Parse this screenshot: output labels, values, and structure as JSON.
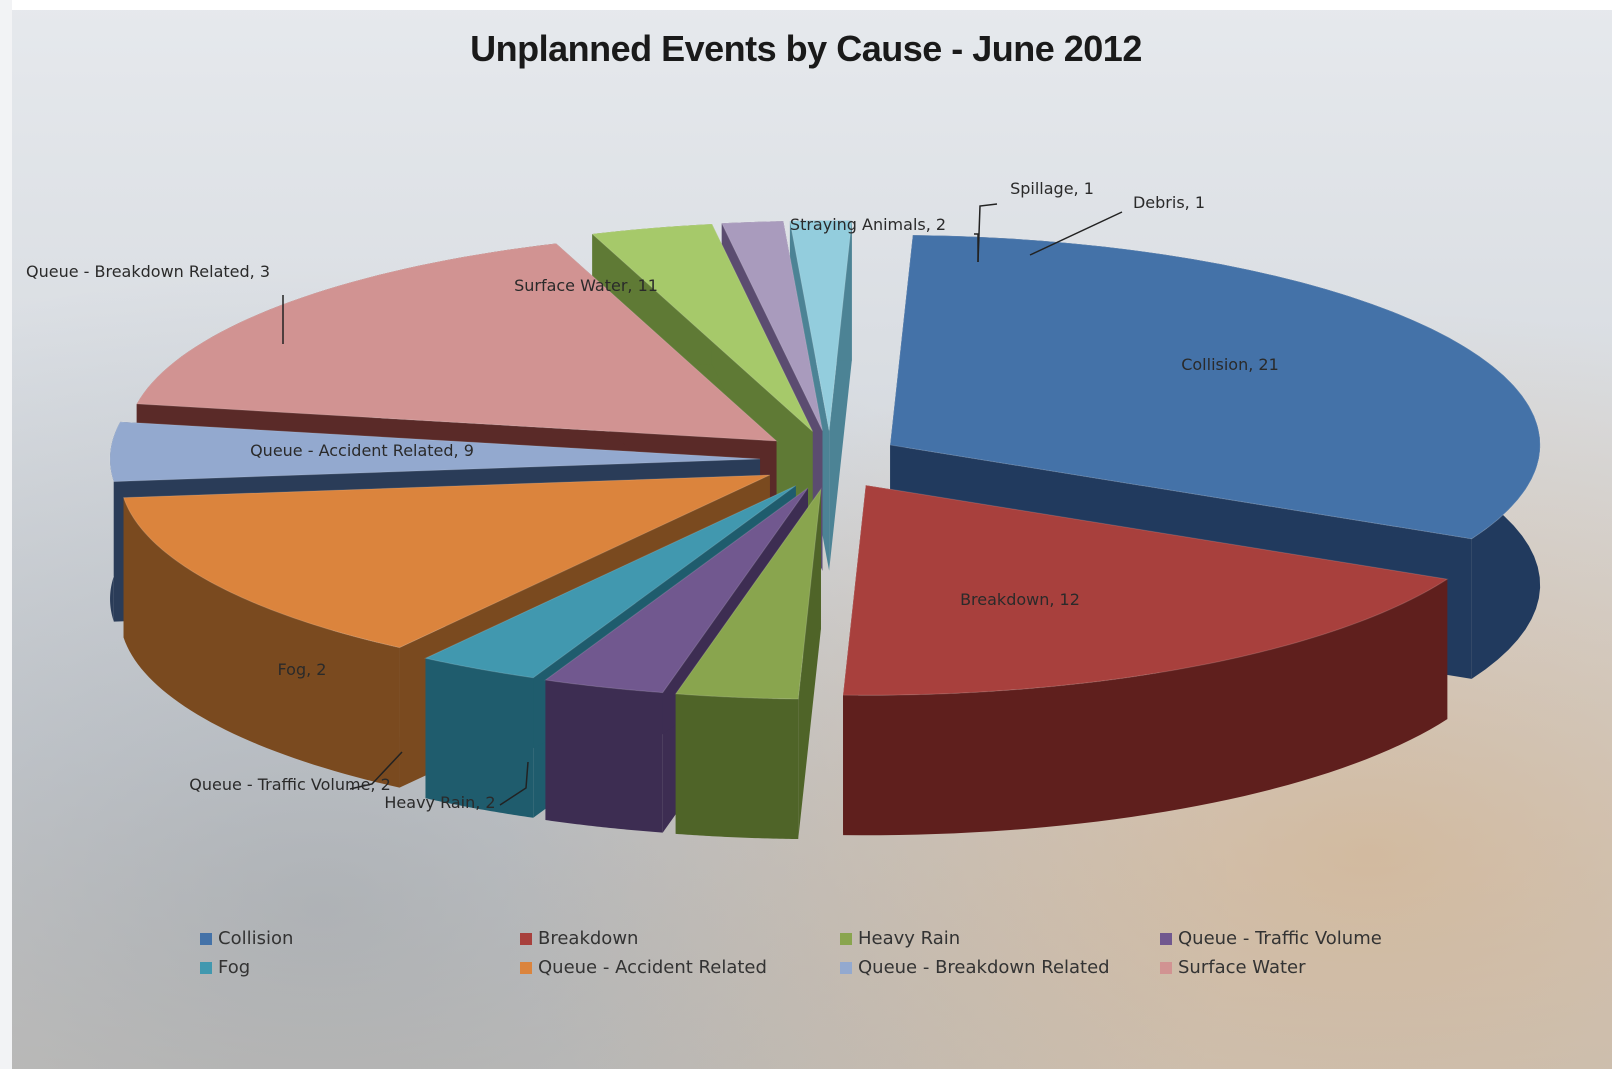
{
  "chart_data": {
    "type": "pie",
    "title": "Unplanned Events by Cause - June 2012",
    "slices": [
      {
        "name": "Collision",
        "value": 21,
        "label": "Collision, 21",
        "color": "#4472a8",
        "side": "#213a5e"
      },
      {
        "name": "Breakdown",
        "value": 12,
        "label": "Breakdown, 12",
        "color": "#a8403d",
        "side": "#5f1f1d"
      },
      {
        "name": "Heavy Rain",
        "value": 2,
        "label": "Heavy Rain, 2",
        "color": "#89a54e",
        "side": "#4f6428"
      },
      {
        "name": "Queue - Traffic Volume",
        "value": 2,
        "label": "Queue - Traffic Volume, 2",
        "color": "#71588f",
        "side": "#3d2d52"
      },
      {
        "name": "Fog",
        "value": 2,
        "label": "Fog, 2",
        "color": "#4198af",
        "side": "#1f5c6d"
      },
      {
        "name": "Queue - Accident Related",
        "value": 9,
        "label": "Queue - Accident Related, 9",
        "color": "#db843d",
        "side": "#7a4a1f"
      },
      {
        "name": "Queue - Breakdown Related",
        "value": 3,
        "label": "Queue - Breakdown Related, 3",
        "color": "#93a9cf",
        "side": "#2a3c58"
      },
      {
        "name": "Surface Water",
        "value": 11,
        "label": "Surface Water, 11",
        "color": "#d19392",
        "side": "#5a2a28"
      },
      {
        "name": "Straying Animals",
        "value": 2,
        "label": "Straying Animals, 2",
        "color": "#a6c96a",
        "side": "#5f7a35"
      },
      {
        "name": "Spillage",
        "value": 1,
        "label": "Spillage, 1",
        "color": "#a99bbd",
        "side": "#5b4c70"
      },
      {
        "name": "Debris",
        "value": 1,
        "label": "Debris, 1",
        "color": "#93cddd",
        "side": "#4c8395"
      }
    ],
    "legend": [
      {
        "name": "Collision",
        "color": "#4472a8"
      },
      {
        "name": "Breakdown",
        "color": "#a8403d"
      },
      {
        "name": "Heavy Rain",
        "color": "#89a54e"
      },
      {
        "name": "Queue - Traffic Volume",
        "color": "#71588f"
      },
      {
        "name": "Fog",
        "color": "#4198af"
      },
      {
        "name": "Queue - Accident Related",
        "color": "#db843d"
      },
      {
        "name": "Queue - Breakdown Related",
        "color": "#93a9cf"
      },
      {
        "name": "Surface Water",
        "color": "#d19392"
      }
    ],
    "legend_position": "bottom",
    "style": "3d-exploded"
  }
}
